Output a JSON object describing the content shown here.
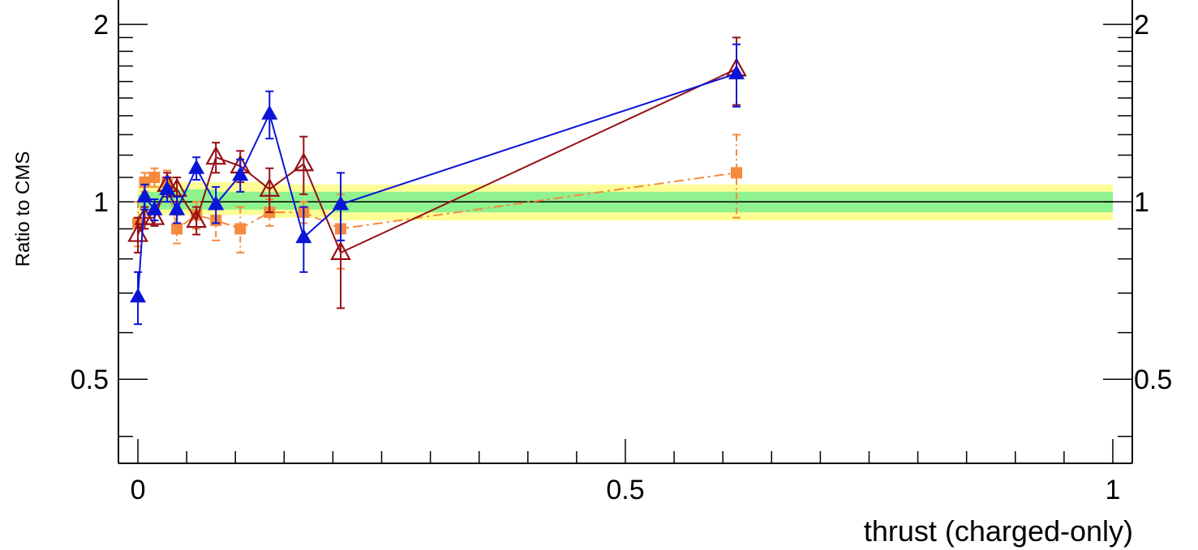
{
  "chart_data": {
    "type": "line",
    "title": "",
    "xlabel": "thrust (charged-only)",
    "ylabel": "Ratio to CMS",
    "xlim": [
      -0.02,
      1.02
    ],
    "ylim": [
      0.36,
      2.2
    ],
    "ylog": true,
    "grid": false,
    "legend": "none",
    "x_ticks": [
      {
        "value": 0,
        "label": "0"
      },
      {
        "value": 0.5,
        "label": "0.5"
      },
      {
        "value": 1,
        "label": "1"
      }
    ],
    "y_ticks": [
      {
        "value": 0.5,
        "label": "0.5"
      },
      {
        "value": 1,
        "label": "1"
      },
      {
        "value": 2,
        "label": "2"
      }
    ],
    "reference_line": 1,
    "uncertainty_bands": {
      "x": [
        0.0,
        0.005,
        0.01,
        0.02,
        0.03,
        0.04,
        0.06,
        0.08,
        0.1,
        0.13,
        0.16,
        0.2,
        0.25,
        0.3,
        1.0
      ],
      "inner": [
        [
          0.98,
          1.03
        ],
        [
          0.97,
          1.04
        ],
        [
          0.97,
          1.04
        ],
        [
          0.97,
          1.05
        ],
        [
          0.97,
          1.05
        ],
        [
          0.97,
          1.05
        ],
        [
          0.97,
          1.05
        ],
        [
          0.97,
          1.04
        ],
        [
          0.97,
          1.04
        ],
        [
          0.97,
          1.04
        ],
        [
          0.97,
          1.04
        ],
        [
          0.96,
          1.04
        ],
        [
          0.96,
          1.04
        ],
        [
          0.96,
          1.04
        ],
        [
          0.96,
          1.04
        ]
      ],
      "outer": [
        [
          0.95,
          1.06
        ],
        [
          0.95,
          1.07
        ],
        [
          0.95,
          1.07
        ],
        [
          0.95,
          1.07
        ],
        [
          0.95,
          1.07
        ],
        [
          0.95,
          1.08
        ],
        [
          0.95,
          1.08
        ],
        [
          0.95,
          1.08
        ],
        [
          0.95,
          1.08
        ],
        [
          0.94,
          1.07
        ],
        [
          0.94,
          1.07
        ],
        [
          0.93,
          1.07
        ],
        [
          0.93,
          1.07
        ],
        [
          0.93,
          1.07
        ],
        [
          0.93,
          1.07
        ]
      ],
      "inner_color": "#8ff28f",
      "outer_color": "#fdfd96"
    },
    "series": [
      {
        "marker": "square",
        "color": "#f58a3c",
        "line_style": "dashdot",
        "points": [
          {
            "x": 0.0,
            "y": 0.92,
            "err": 0.08
          },
          {
            "x": 0.007,
            "y": 1.08,
            "err": 0.04
          },
          {
            "x": 0.017,
            "y": 1.1,
            "err": 0.04
          },
          {
            "x": 0.03,
            "y": 1.08,
            "err": 0.05
          },
          {
            "x": 0.04,
            "y": 0.9,
            "err": 0.05
          },
          {
            "x": 0.06,
            "y": 0.95,
            "err": 0.05
          },
          {
            "x": 0.08,
            "y": 0.93,
            "err": 0.07
          },
          {
            "x": 0.105,
            "y": 0.9,
            "err": 0.08
          },
          {
            "x": 0.135,
            "y": 0.96,
            "err": 0.05
          },
          {
            "x": 0.17,
            "y": 0.96,
            "err": 0.04
          },
          {
            "x": 0.208,
            "y": 0.9,
            "err": 0.13
          },
          {
            "x": 0.614,
            "y": 1.12,
            "err": 0.18
          }
        ]
      },
      {
        "marker": "open-triangle",
        "color": "#960f16",
        "line_style": "solid",
        "points": [
          {
            "x": 0.0,
            "y": 0.88,
            "err": 0.06
          },
          {
            "x": 0.007,
            "y": 0.94,
            "err": 0.04
          },
          {
            "x": 0.017,
            "y": 0.94,
            "err": 0.03
          },
          {
            "x": 0.03,
            "y": 1.07,
            "err": 0.05
          },
          {
            "x": 0.04,
            "y": 1.05,
            "err": 0.05
          },
          {
            "x": 0.06,
            "y": 0.93,
            "err": 0.05
          },
          {
            "x": 0.08,
            "y": 1.19,
            "err": 0.07
          },
          {
            "x": 0.105,
            "y": 1.15,
            "err": 0.07
          },
          {
            "x": 0.135,
            "y": 1.05,
            "err": 0.09
          },
          {
            "x": 0.17,
            "y": 1.16,
            "err": 0.13
          },
          {
            "x": 0.208,
            "y": 0.82,
            "err": 0.16
          },
          {
            "x": 0.614,
            "y": 1.68,
            "err": 0.22
          }
        ]
      },
      {
        "marker": "filled-triangle",
        "color": "#0a14d6",
        "line_style": "solid",
        "points": [
          {
            "x": 0.0,
            "y": 0.69,
            "err": 0.07
          },
          {
            "x": 0.007,
            "y": 1.02,
            "err": 0.05
          },
          {
            "x": 0.017,
            "y": 0.97,
            "err": 0.04
          },
          {
            "x": 0.03,
            "y": 1.05,
            "err": 0.05
          },
          {
            "x": 0.04,
            "y": 0.97,
            "err": 0.05
          },
          {
            "x": 0.06,
            "y": 1.14,
            "err": 0.05
          },
          {
            "x": 0.08,
            "y": 0.99,
            "err": 0.07
          },
          {
            "x": 0.105,
            "y": 1.11,
            "err": 0.07
          },
          {
            "x": 0.135,
            "y": 1.41,
            "err": 0.13
          },
          {
            "x": 0.17,
            "y": 0.87,
            "err": 0.11
          },
          {
            "x": 0.208,
            "y": 0.99,
            "err": 0.13
          },
          {
            "x": 0.614,
            "y": 1.65,
            "err": 0.2
          }
        ]
      }
    ]
  }
}
